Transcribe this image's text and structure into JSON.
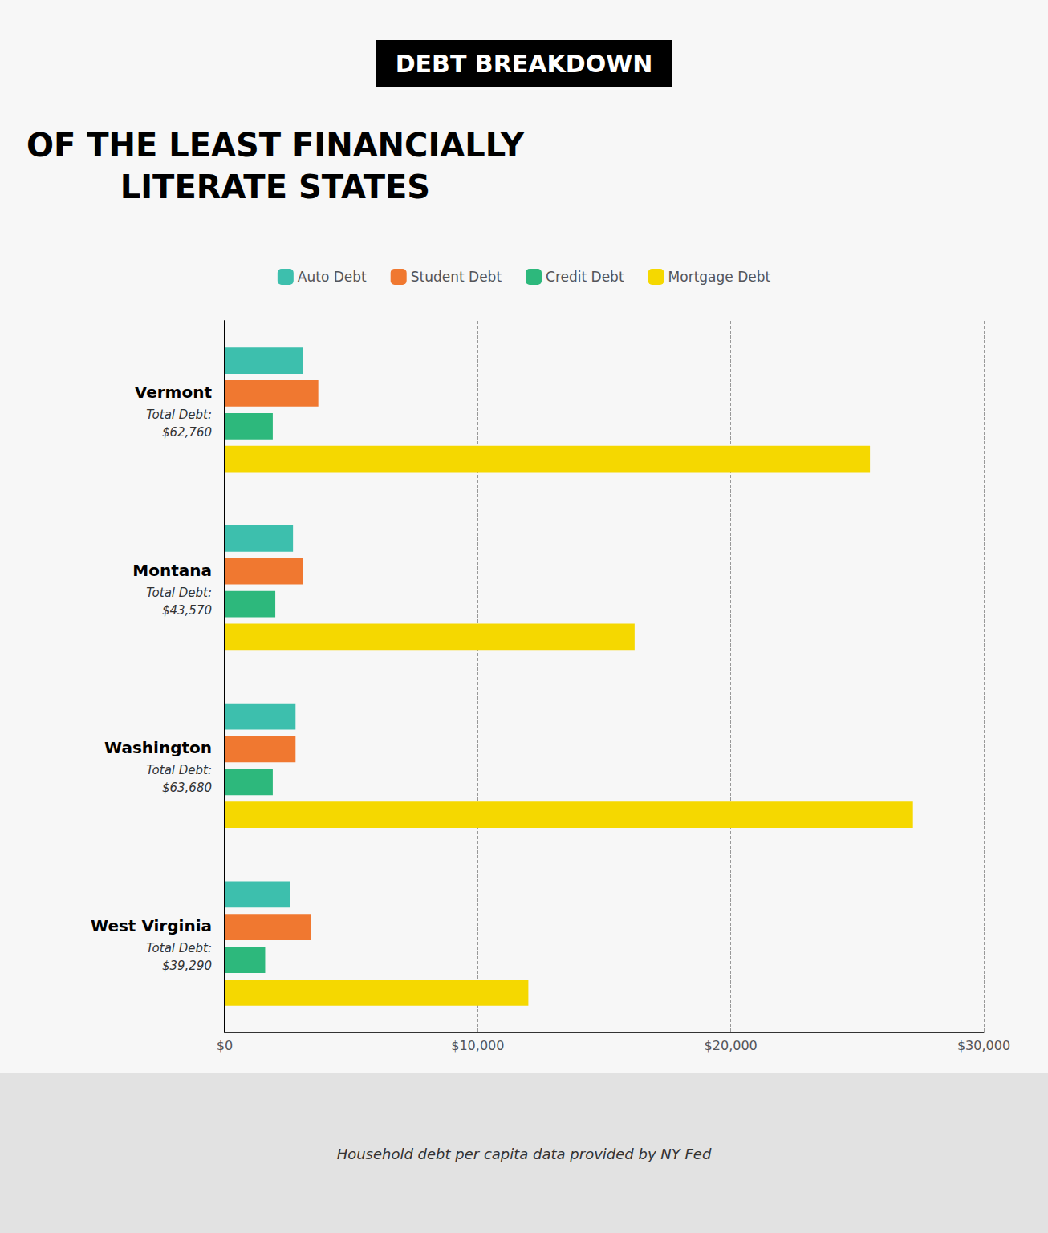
{
  "chart_data": {
    "type": "bar",
    "orientation": "horizontal",
    "title": "DEBT BREAKDOWN",
    "subtitle": "OF THE LEAST FINANCIALLY\nLITERATE STATES",
    "caption": "Household debt per capita data provided by NY Fed",
    "categories": [
      "Vermont",
      "Montana",
      "Washington",
      "West Virginia"
    ],
    "annotations": [
      "Total Debt:\n$62,760",
      "Total Debt:\n$43,570",
      "Total Debt:\n$63,680",
      "Total Debt:\n$39,290"
    ],
    "series": [
      {
        "name": "Auto Debt",
        "color": "#3dbfad",
        "values": [
          3100,
          2700,
          2800,
          2600
        ]
      },
      {
        "name": "Student Debt",
        "color": "#f07830",
        "values": [
          3700,
          3100,
          2800,
          3400
        ]
      },
      {
        "name": "Credit Debt",
        "color": "#2db87c",
        "values": [
          1900,
          2000,
          1900,
          1600
        ]
      },
      {
        "name": "Mortgage Debt",
        "color": "#f5d800",
        "values": [
          25500,
          16200,
          27200,
          12000
        ]
      }
    ],
    "xlim": [
      0,
      30000
    ],
    "xticks": [
      {
        "value": 0,
        "label": "$0"
      },
      {
        "value": 10000,
        "label": "$10,000"
      },
      {
        "value": 20000,
        "label": "$20,000"
      },
      {
        "value": 30000,
        "label": "$30,000"
      }
    ],
    "grid": true,
    "legend": "top"
  }
}
